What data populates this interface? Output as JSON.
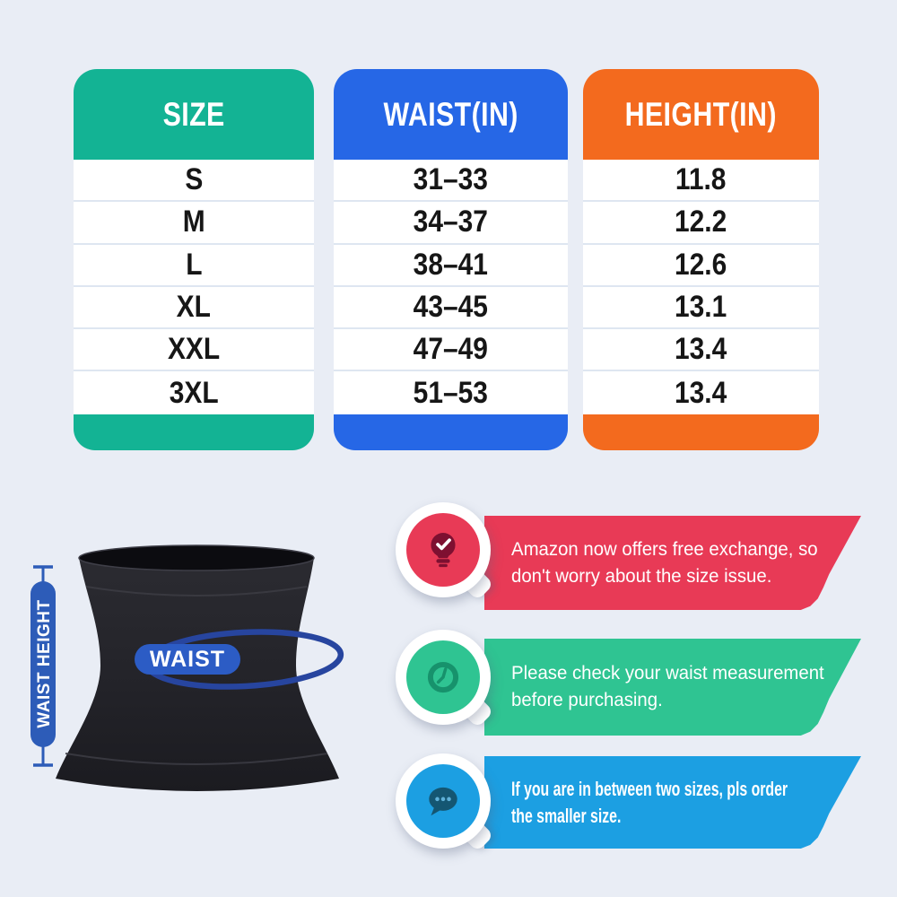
{
  "canvas": {
    "background": "#e9edf5"
  },
  "size_chart": {
    "columns": [
      {
        "header": "SIZE",
        "color": "#13b394",
        "values": [
          "S",
          "M",
          "L",
          "XL",
          "XXL",
          "3XL"
        ]
      },
      {
        "header": "WAIST(IN)",
        "color": "#2667e6",
        "values": [
          "31–33",
          "34–37",
          "38–41",
          "43–45",
          "47–49",
          "51–53"
        ]
      },
      {
        "header": "HEIGHT(IN)",
        "color": "#f36a1e",
        "values": [
          "11.8",
          "12.2",
          "12.6",
          "13.1",
          "13.4",
          "13.4"
        ]
      }
    ]
  },
  "chart_data": {
    "type": "table",
    "columns": [
      "SIZE",
      "WAIST(IN)",
      "HEIGHT(IN)"
    ],
    "rows": [
      [
        "S",
        "31–33",
        "11.8"
      ],
      [
        "M",
        "34–37",
        "12.2"
      ],
      [
        "L",
        "38–41",
        "12.6"
      ],
      [
        "XL",
        "43–45",
        "13.1"
      ],
      [
        "XXL",
        "47–49",
        "13.4"
      ],
      [
        "3XL",
        "51–53",
        "13.4"
      ]
    ]
  },
  "illustration": {
    "waist_label": "WAIST",
    "height_label": "WAIST HEIGHT",
    "pill_color": "#2c5cc5",
    "ring_color": "#27459f",
    "measure_color": "#2d5cb8"
  },
  "callouts": [
    {
      "icon": "lightbulb-check-icon",
      "color": "#e83a56",
      "icon_color": "#7e1031",
      "lines": [
        "Amazon now offers free exchange, so",
        "don't worry about the size issue."
      ]
    },
    {
      "icon": "clock-icon",
      "color": "#2fc492",
      "icon_color": "#17926c",
      "lines": [
        "Please check your waist measurement",
        "before purchasing."
      ]
    },
    {
      "icon": "chat-dots-icon",
      "color": "#1c9fe2",
      "icon_color": "#145672",
      "dot_color": "#5fb0d8",
      "lines": [
        "If you are in between two sizes, pls order",
        "the smaller size."
      ]
    }
  ]
}
